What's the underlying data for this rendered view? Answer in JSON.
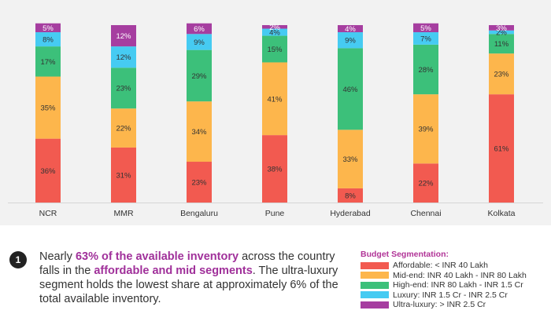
{
  "chart_data": {
    "type": "bar",
    "stacked": true,
    "categories": [
      "NCR",
      "MMR",
      "Bengaluru",
      "Pune",
      "Hyderabad",
      "Chennai",
      "Kolkata"
    ],
    "series": [
      {
        "name": "Affordable: < INR 40 Lakh",
        "color": "#f25a50",
        "values": [
          36,
          31,
          23,
          38,
          8,
          22,
          61
        ]
      },
      {
        "name": "Mid-end: INR 40 Lakh - INR 80 Lakh",
        "color": "#fdb64c",
        "values": [
          35,
          22,
          34,
          41,
          33,
          39,
          23
        ]
      },
      {
        "name": "High-end: INR 80 Lakh - INR 1.5 Cr",
        "color": "#3cc07a",
        "values": [
          17,
          23,
          29,
          15,
          46,
          28,
          11
        ]
      },
      {
        "name": "Luxury: INR 1.5 Cr - INR 2.5 Cr",
        "color": "#46cbf2",
        "values": [
          8,
          12,
          9,
          4,
          9,
          7,
          2
        ]
      },
      {
        "name": "Ultra-luxury: > INR 2.5 Cr",
        "color": "#a63ea0",
        "values": [
          5,
          12,
          6,
          2,
          4,
          5,
          3
        ]
      }
    ],
    "value_suffix": "%",
    "ylim": [
      0,
      100
    ]
  },
  "note": {
    "number": "1",
    "part1": "Nearly ",
    "highlight1": "63% of the available inventory",
    "part2": " across the country falls in the ",
    "highlight2": "affordable and mid segments",
    "part3": ". The ultra-luxury segment holds the lowest share at approximately 6% of the total available inventory."
  },
  "legend": {
    "title": "Budget Segmentation:"
  }
}
